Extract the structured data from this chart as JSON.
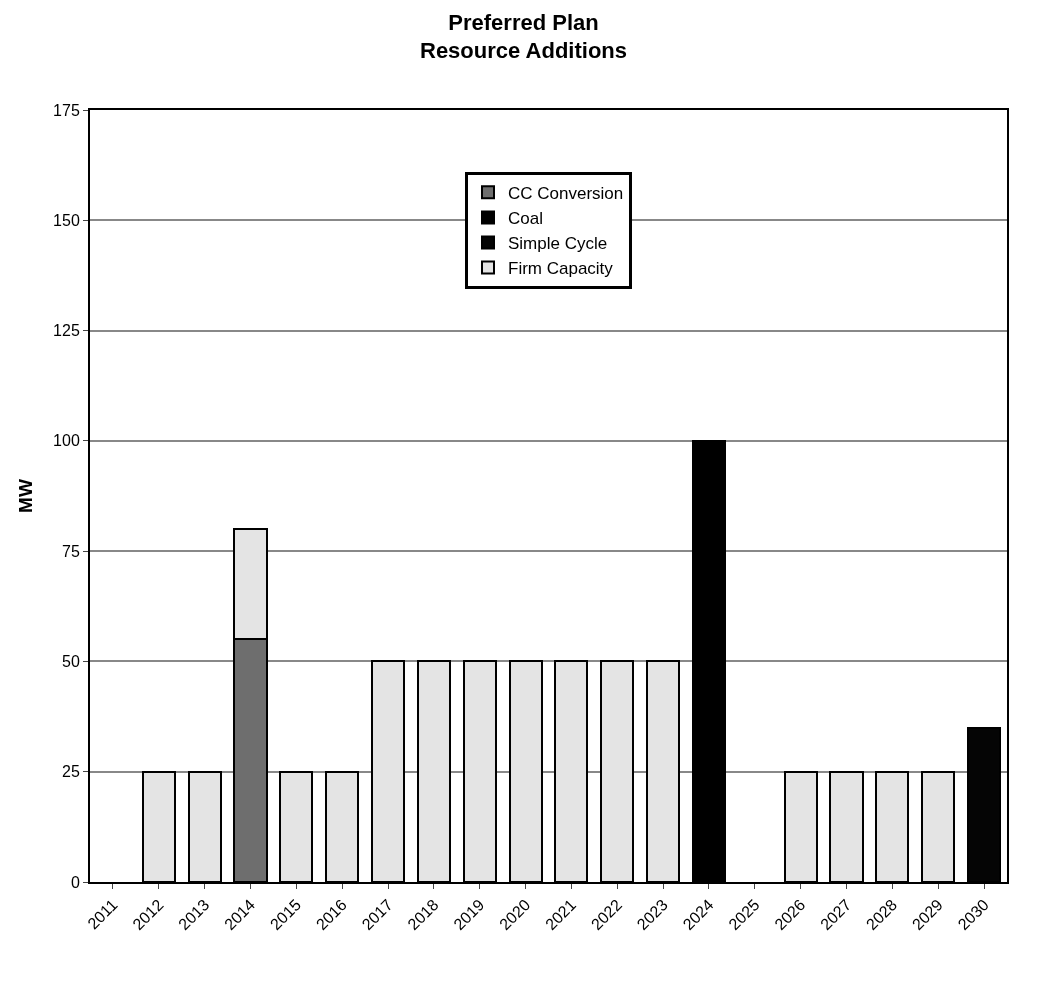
{
  "chart_data": {
    "type": "bar",
    "title": "Preferred Plan\nResource Additions",
    "ylabel": "MW",
    "stacked": true,
    "categories": [
      "2011",
      "2012",
      "2013",
      "2014",
      "2015",
      "2016",
      "2017",
      "2018",
      "2019",
      "2020",
      "2021",
      "2022",
      "2023",
      "2024",
      "2025",
      "2026",
      "2027",
      "2028",
      "2029",
      "2030"
    ],
    "series": [
      {
        "name": "CC Conversion",
        "color": "#6e6e6e",
        "values": [
          null,
          null,
          null,
          55,
          null,
          null,
          null,
          null,
          null,
          null,
          null,
          null,
          null,
          null,
          null,
          null,
          null,
          null,
          null,
          null
        ]
      },
      {
        "name": "Coal",
        "color": "#000000",
        "values": [
          null,
          null,
          null,
          null,
          null,
          null,
          null,
          null,
          null,
          null,
          null,
          null,
          null,
          100,
          null,
          null,
          null,
          null,
          null,
          null
        ]
      },
      {
        "name": "Simple Cycle",
        "color": "#050505",
        "values": [
          null,
          null,
          null,
          null,
          null,
          null,
          null,
          null,
          null,
          null,
          null,
          null,
          null,
          null,
          null,
          null,
          null,
          null,
          null,
          35
        ]
      },
      {
        "name": "Firm Capacity",
        "color": "#e4e4e4",
        "values": [
          null,
          25,
          25,
          25,
          25,
          25,
          50,
          50,
          50,
          50,
          50,
          50,
          50,
          null,
          null,
          25,
          25,
          25,
          25,
          null
        ]
      }
    ],
    "ylim": [
      0,
      175
    ],
    "yticks": [
      0,
      25,
      50,
      75,
      100,
      125,
      150,
      175
    ],
    "grid": "y",
    "legend": "top"
  }
}
